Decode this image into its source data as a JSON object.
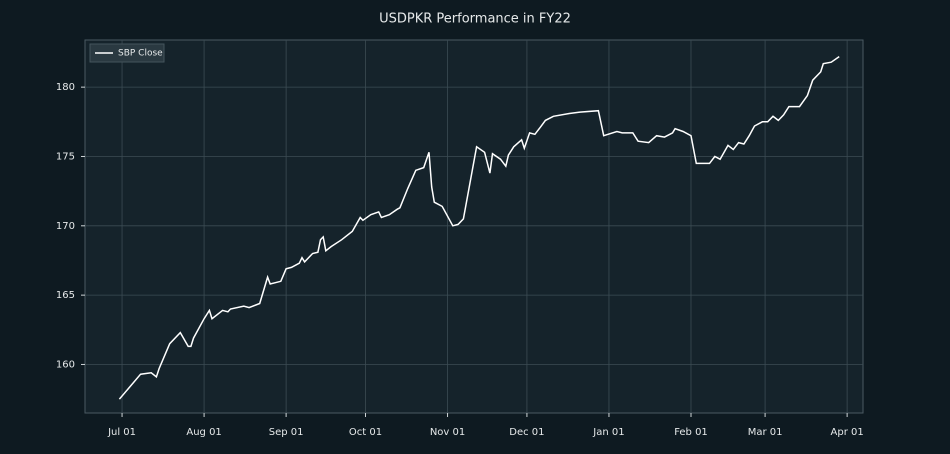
{
  "chart_data": {
    "type": "line",
    "title": "USDPKR Performance in FY22",
    "x": [
      "06-30",
      "07-08",
      "07-12",
      "07-14",
      "07-15",
      "07-19",
      "07-23",
      "07-26",
      "07-27",
      "07-28",
      "08-01",
      "08-03",
      "08-04",
      "08-08",
      "08-10",
      "08-11",
      "08-16",
      "08-18",
      "08-22",
      "08-25",
      "08-26",
      "08-30",
      "09-01",
      "09-03",
      "09-06",
      "09-07",
      "09-08",
      "09-11",
      "09-13",
      "09-14",
      "09-15",
      "09-16",
      "09-18",
      "09-22",
      "09-26",
      "09-29",
      "09-30",
      "10-03",
      "10-06",
      "10-07",
      "10-10",
      "10-13",
      "10-14",
      "10-17",
      "10-20",
      "10-23",
      "10-25",
      "10-26",
      "10-27",
      "10-30",
      "11-03",
      "11-05",
      "11-07",
      "11-12",
      "11-15",
      "11-17",
      "11-18",
      "11-21",
      "11-23",
      "11-24",
      "11-26",
      "11-29",
      "11-30",
      "12-02",
      "12-04",
      "12-06",
      "12-08",
      "12-11",
      "12-17",
      "12-21",
      "12-28",
      "12-30",
      "01-04",
      "01-06",
      "01-10",
      "01-12",
      "01-16",
      "01-19",
      "01-22",
      "01-25",
      "01-26",
      "01-29",
      "02-01",
      "02-03",
      "02-08",
      "02-10",
      "02-12",
      "02-15",
      "02-17",
      "02-19",
      "02-21",
      "02-23",
      "02-25",
      "02-28",
      "03-02",
      "03-04",
      "03-06",
      "03-08",
      "03-10",
      "03-14",
      "03-17",
      "03-19",
      "03-22",
      "03-23",
      "03-26",
      "03-29"
    ],
    "series": [
      {
        "name": "SBP Close",
        "color": "#ffffff",
        "values": [
          157.5,
          159.3,
          159.4,
          159.1,
          159.7,
          161.5,
          162.3,
          161.3,
          161.3,
          161.9,
          163.3,
          163.9,
          163.3,
          163.9,
          163.8,
          164.0,
          164.2,
          164.1,
          164.4,
          166.3,
          165.8,
          166.0,
          166.9,
          167.0,
          167.3,
          167.7,
          167.4,
          168.0,
          168.1,
          169.0,
          169.2,
          168.2,
          168.5,
          169.0,
          169.6,
          170.6,
          170.4,
          170.8,
          171.0,
          170.6,
          170.8,
          171.2,
          171.3,
          172.7,
          174.0,
          174.2,
          175.3,
          172.8,
          171.7,
          171.4,
          170.0,
          170.1,
          170.5,
          175.7,
          175.3,
          173.8,
          175.2,
          174.8,
          174.3,
          175.1,
          175.7,
          176.2,
          175.6,
          176.7,
          176.6,
          177.1,
          177.6,
          177.9,
          178.1,
          178.2,
          178.3,
          176.5,
          176.8,
          176.7,
          176.7,
          176.1,
          176.0,
          176.5,
          176.4,
          176.7,
          177.0,
          176.8,
          176.5,
          174.5,
          174.5,
          175.0,
          174.8,
          175.8,
          175.5,
          176.0,
          175.9,
          176.5,
          177.2,
          177.5,
          177.5,
          177.9,
          177.6,
          178.0,
          178.6,
          178.6,
          179.4,
          180.5,
          181.1,
          181.7,
          181.8,
          182.2
        ]
      }
    ],
    "xlim": [
      "06-17",
      "04-07"
    ],
    "xticks": [
      {
        "value": "07-01",
        "label": "Jul 01"
      },
      {
        "value": "08-01",
        "label": "Aug 01"
      },
      {
        "value": "09-01",
        "label": "Sep 01"
      },
      {
        "value": "10-01",
        "label": "Oct 01"
      },
      {
        "value": "11-01",
        "label": "Nov 01"
      },
      {
        "value": "12-01",
        "label": "Dec 01"
      },
      {
        "value": "01-01",
        "label": "Jan 01"
      },
      {
        "value": "02-01",
        "label": "Feb 01"
      },
      {
        "value": "03-01",
        "label": "Mar 01"
      },
      {
        "value": "04-01",
        "label": "Apr 01"
      }
    ],
    "ylim": [
      156.5,
      183.4
    ],
    "yticks": [
      160,
      165,
      170,
      175,
      180
    ],
    "grid": true,
    "legend": "upper left"
  }
}
